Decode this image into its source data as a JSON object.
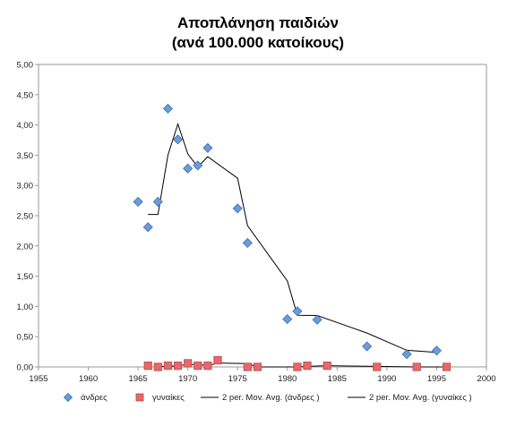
{
  "chart_data": {
    "type": "scatter",
    "title": "Αποπλάνηση παιδιών",
    "subtitle": "(ανά 100.000 κατοίκους)",
    "xlabel": "",
    "ylabel": "",
    "xlim": [
      1955,
      2000
    ],
    "ylim": [
      0,
      5
    ],
    "x_ticks": [
      "1955",
      "1960",
      "1965",
      "1970",
      "1975",
      "1980",
      "1985",
      "1990",
      "1995",
      "2000"
    ],
    "y_ticks": [
      "0,00",
      "0,50",
      "1,00",
      "1,50",
      "2,00",
      "2,50",
      "3,00",
      "3,50",
      "4,00",
      "4,50",
      "5,00"
    ],
    "grid": false,
    "legend_position": "bottom",
    "colors": {
      "men": "#6b9bd8",
      "men_stroke": "#3f6fae",
      "women": "#e8676a",
      "women_stroke": "#b84a4d",
      "avg_line": "#000000"
    },
    "series": [
      {
        "name": "άνδρες",
        "kind": "scatter",
        "marker": "diamond",
        "x": [
          1965,
          1966,
          1967,
          1968,
          1969,
          1970,
          1971,
          1972,
          1975,
          1976,
          1980,
          1981,
          1983,
          1988,
          1992,
          1995
        ],
        "y": [
          2.73,
          2.31,
          2.73,
          4.27,
          3.76,
          3.28,
          3.33,
          3.62,
          2.62,
          2.05,
          0.79,
          0.92,
          0.78,
          0.34,
          0.21,
          0.27
        ]
      },
      {
        "name": "γυναίκες",
        "kind": "scatter",
        "marker": "square",
        "x": [
          1966,
          1967,
          1968,
          1969,
          1970,
          1971,
          1972,
          1973,
          1976,
          1977,
          1981,
          1982,
          1984,
          1989,
          1993,
          1996
        ],
        "y": [
          0.02,
          0.0,
          0.02,
          0.02,
          0.06,
          0.02,
          0.02,
          0.11,
          0.0,
          0.0,
          0.0,
          0.02,
          0.02,
          0.0,
          0.0,
          0.0
        ]
      },
      {
        "name": "2 per. Mov. Avg. (άνδρες )",
        "kind": "line"
      },
      {
        "name": "2 per. Mov. Avg. (γυναίκες )",
        "kind": "line"
      }
    ]
  }
}
